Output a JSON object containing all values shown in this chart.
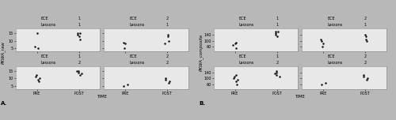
{
  "panel_A": {
    "ylabel": "PKWA_raw",
    "xlabel": "TIME",
    "label": "A.",
    "subplots": [
      {
        "lessons": "1",
        "ece": "1",
        "pre": [
          5,
          6,
          15
        ],
        "post": [
          11,
          13,
          14,
          15,
          15
        ]
      },
      {
        "lessons": "1",
        "ece": "2",
        "pre": [
          5,
          8,
          9
        ],
        "post": [
          8,
          10,
          13,
          14
        ]
      },
      {
        "lessons": "2",
        "ece": "1",
        "pre": [
          8,
          9,
          10,
          11,
          12
        ],
        "post": [
          12,
          13,
          14,
          15,
          15
        ]
      },
      {
        "lessons": "2",
        "ece": "2",
        "pre": [
          5,
          6
        ],
        "post": [
          7,
          8,
          9,
          10
        ]
      }
    ],
    "ylim": [
      3,
      18
    ],
    "yticks": [
      5,
      10,
      15
    ]
  },
  "panel_B": {
    "ylabel": "PKWA_composite",
    "xlabel": "TIME",
    "label": "B.",
    "subplots": [
      {
        "lessons": "1",
        "ece": "1",
        "pre": [
          50,
          70,
          80,
          90
        ],
        "post": [
          130,
          140,
          150,
          160,
          160
        ]
      },
      {
        "lessons": "1",
        "ece": "2",
        "pre": [
          60,
          80,
          100,
          110
        ],
        "post": [
          100,
          110,
          130,
          140
        ]
      },
      {
        "lessons": "2",
        "ece": "1",
        "pre": [
          60,
          80,
          90,
          100,
          110,
          120
        ],
        "post": [
          110,
          120,
          130,
          140,
          150
        ]
      },
      {
        "lessons": "2",
        "ece": "2",
        "pre": [
          60,
          70
        ],
        "post": [
          90,
          100,
          110,
          120
        ]
      }
    ],
    "ylim": [
      30,
      180
    ],
    "yticks": [
      60,
      100,
      140
    ]
  },
  "xtick_labels": [
    "PRE",
    "POST"
  ],
  "header_bg_lessons": "#d4d4d4",
  "header_bg_ece": "#e2e2e2",
  "subplot_bg": "#e8e8e8",
  "dot_color": "#111111",
  "figure_bg": "#b8b8b8",
  "border_color": "#888888",
  "panel_bg": "#f0f0f0"
}
